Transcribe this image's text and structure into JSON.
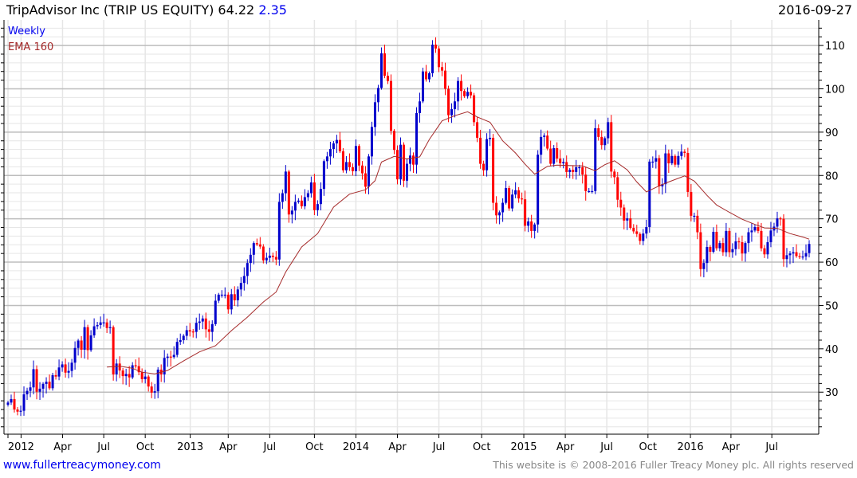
{
  "header": {
    "title": "TripAdvisor Inc (TRIP US EQUITY) 64.22",
    "change": "2.35",
    "date": "2016-09-27"
  },
  "legend": {
    "period": "Weekly",
    "indicator": "EMA 160"
  },
  "footer": {
    "site": "www.fullertreacymoney.com",
    "copyright": "This website is © 2008-2016 Fuller Treacy Money plc. All rights reserved"
  },
  "colors": {
    "up": "#0000cc",
    "down": "#ff0000",
    "ema": "#a52a2a",
    "grid_major": "#bdbdbd",
    "grid_minor": "#e6e6e6",
    "link": "#0000ee"
  },
  "chart_data": {
    "type": "candlestick",
    "title": "TripAdvisor Inc (TRIP US EQUITY)",
    "frequency": "weekly",
    "ylim": [
      20.3,
      115.9
    ],
    "y_ticks": [
      30,
      40,
      50,
      60,
      70,
      80,
      90,
      100,
      110
    ],
    "y_minor_step": 2,
    "grid": true,
    "x_ticks": [
      {
        "week": 0,
        "label": ""
      },
      {
        "week": 4.1,
        "label": "2012"
      },
      {
        "week": 17.1,
        "label": "Apr"
      },
      {
        "week": 30,
        "label": "Jul"
      },
      {
        "week": 43,
        "label": "Oct"
      },
      {
        "week": 57.1,
        "label": "2013"
      },
      {
        "week": 69,
        "label": "Apr"
      },
      {
        "week": 82,
        "label": "Jul"
      },
      {
        "week": 96,
        "label": "Oct"
      },
      {
        "week": 109,
        "label": "2014"
      },
      {
        "week": 122,
        "label": "Apr"
      },
      {
        "week": 135,
        "label": "Jul"
      },
      {
        "week": 148.4,
        "label": "Oct"
      },
      {
        "week": 161.6,
        "label": "2015"
      },
      {
        "week": 174.6,
        "label": "Apr"
      },
      {
        "week": 187.6,
        "label": "Jul"
      },
      {
        "week": 200.5,
        "label": "Oct"
      },
      {
        "week": 213.8,
        "label": "2016"
      },
      {
        "week": 226.5,
        "label": "Apr"
      },
      {
        "week": 239.3,
        "label": "Jul"
      }
    ],
    "close": [
      27.6,
      28.4,
      26.0,
      25.5,
      25.7,
      29.5,
      30.3,
      31.1,
      35.3,
      30.1,
      30.8,
      31.9,
      32.4,
      30.9,
      33.9,
      33.6,
      35.7,
      36.4,
      34.5,
      34.9,
      36.8,
      40.2,
      41.9,
      39.8,
      45.0,
      39.7,
      43.1,
      45.2,
      45.5,
      46.1,
      46.1,
      44.8,
      45.0,
      34.1,
      36.6,
      35.0,
      33.7,
      34.2,
      33.4,
      36.2,
      36.0,
      34.6,
      33.0,
      33.6,
      31.3,
      29.9,
      30.2,
      35.2,
      34.1,
      37.9,
      38.2,
      38.1,
      38.6,
      41.6,
      42.0,
      43.0,
      44.3,
      44.0,
      43.9,
      46.0,
      46.3,
      47.0,
      44.5,
      43.9,
      45.7,
      51.1,
      52.5,
      52.5,
      52.5,
      49.1,
      52.6,
      51.2,
      53.7,
      55.2,
      56.8,
      59.8,
      61.7,
      64.4,
      64.1,
      63.6,
      60.4,
      61.0,
      61.5,
      61.2,
      60.6,
      73.9,
      75.9,
      80.9,
      71.0,
      71.9,
      73.9,
      74.2,
      72.9,
      75.0,
      75.9,
      78.4,
      72.0,
      73.4,
      76.9,
      83.3,
      84.4,
      86.1,
      87.4,
      88.2,
      85.6,
      81.2,
      83.1,
      81.9,
      81.0,
      86.8,
      82.3,
      80.5,
      77.4,
      84.4,
      91.2,
      96.9,
      100.2,
      108.2,
      103.0,
      101.8,
      90.3,
      85.9,
      79.1,
      87.1,
      78.8,
      82.7,
      84.6,
      82.5,
      94.4,
      97.1,
      104.0,
      102.2,
      103.6,
      110.2,
      109.3,
      105.0,
      104.2,
      100.0,
      93.9,
      95.3,
      97.1,
      101.8,
      99.5,
      98.3,
      99.3,
      98.5,
      92.3,
      88.7,
      82.7,
      81.2,
      88.4,
      88.7,
      73.7,
      70.8,
      71.5,
      73.7,
      77.1,
      72.4,
      75.6,
      76.6,
      74.7,
      74.5,
      68.4,
      69.4,
      67.2,
      68.7,
      84.8,
      88.9,
      89.2,
      86.2,
      82.7,
      86.3,
      83.9,
      82.8,
      83.1,
      80.8,
      81.3,
      80.8,
      81.9,
      81.9,
      80.2,
      76.4,
      76.4,
      76.4,
      90.9,
      88.9,
      87.0,
      88.6,
      92.3,
      80.9,
      79.6,
      74.4,
      72.6,
      69.6,
      70.1,
      67.9,
      67.1,
      66.5,
      64.9,
      66.6,
      68.1,
      83.2,
      83.2,
      84.0,
      77.5,
      78.0,
      85.1,
      82.8,
      84.5,
      82.5,
      84.5,
      85.5,
      85.2,
      76.2,
      70.7,
      70.7,
      66.9,
      58.4,
      59.8,
      63.5,
      62.4,
      67.0,
      63.2,
      64.4,
      62.3,
      67.2,
      62.3,
      63.0,
      64.8,
      64.6,
      62.0,
      64.4,
      66.9,
      67.3,
      68.1,
      67.2,
      63.2,
      61.8,
      64.6,
      67.3,
      68.2,
      70.1,
      70.0,
      60.7,
      61.6,
      62.0,
      62.3,
      61.4,
      61.3,
      61.3,
      62.1,
      64.2
    ],
    "ema160": [
      [
        31,
        35.8
      ],
      [
        35,
        36.0
      ],
      [
        39,
        35.5
      ],
      [
        42,
        34.6
      ],
      [
        46,
        34.2
      ],
      [
        50,
        35.0
      ],
      [
        55,
        37.2
      ],
      [
        60,
        39.3
      ],
      [
        65,
        40.7
      ],
      [
        70,
        44.2
      ],
      [
        75,
        47.3
      ],
      [
        80,
        50.8
      ],
      [
        84,
        53.1
      ],
      [
        87,
        57.7
      ],
      [
        92,
        63.5
      ],
      [
        97,
        66.6
      ],
      [
        102,
        72.7
      ],
      [
        107,
        75.7
      ],
      [
        112,
        76.7
      ],
      [
        115,
        78.8
      ],
      [
        117,
        83.1
      ],
      [
        121,
        84.4
      ],
      [
        125,
        83.8
      ],
      [
        129,
        84.3
      ],
      [
        132,
        88.3
      ],
      [
        136,
        92.6
      ],
      [
        140,
        93.8
      ],
      [
        144,
        94.7
      ],
      [
        147,
        93.5
      ],
      [
        151,
        92.3
      ],
      [
        155,
        88.0
      ],
      [
        159,
        85.2
      ],
      [
        162,
        82.6
      ],
      [
        165,
        80.3
      ],
      [
        169,
        82.1
      ],
      [
        172,
        82.4
      ],
      [
        176,
        82.3
      ],
      [
        180,
        82.2
      ],
      [
        184,
        81.1
      ],
      [
        187,
        82.5
      ],
      [
        190,
        83.4
      ],
      [
        194,
        81.3
      ],
      [
        197,
        78.5
      ],
      [
        200,
        76.2
      ],
      [
        204,
        77.6
      ],
      [
        207,
        78.5
      ],
      [
        212,
        79.9
      ],
      [
        215,
        78.7
      ],
      [
        219,
        75.4
      ],
      [
        222,
        73.2
      ],
      [
        226,
        71.5
      ],
      [
        230,
        69.9
      ],
      [
        234,
        68.7
      ],
      [
        237,
        67.9
      ],
      [
        241,
        67.8
      ],
      [
        245,
        66.6
      ],
      [
        249,
        65.8
      ],
      [
        251,
        65.3
      ]
    ]
  }
}
